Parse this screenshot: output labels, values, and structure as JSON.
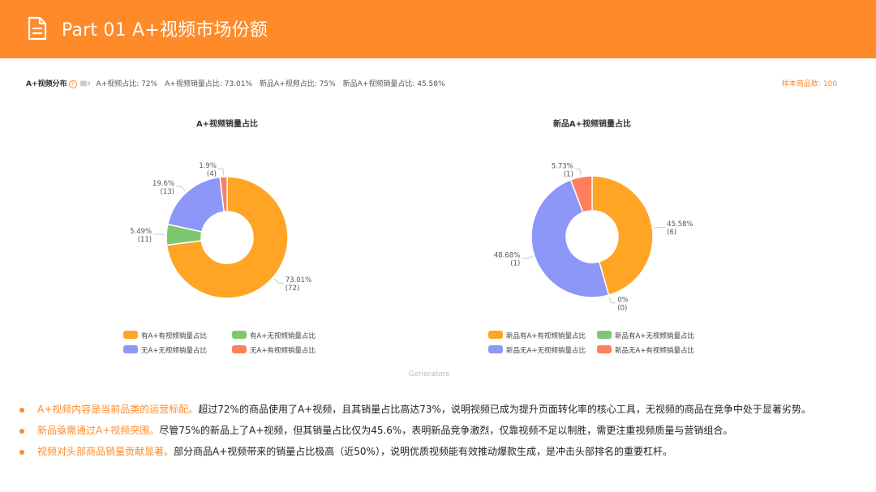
{
  "header": {
    "title": "Part 01  A+视频市场份额",
    "icon": "document-icon",
    "background": "#FF8A2A"
  },
  "stats": {
    "label": "A+视频分布",
    "help": "?",
    "items": [
      "A+视频占比: 72%",
      "A+视频销量占比: 73.01%",
      "新品A+视频占比: 75%",
      "新品A+视频销量占比: 45.58%"
    ],
    "sample": "样本商品数: 100"
  },
  "chart_data": [
    {
      "type": "pie",
      "donut": true,
      "title": "A+视频销量占比",
      "slices": [
        {
          "name": "有A+有视频销量占比",
          "value": 73.01,
          "count": 72,
          "color": "#FFA424"
        },
        {
          "name": "有A+无视频销量占比",
          "value": 5.49,
          "count": 11,
          "color": "#7DC86E"
        },
        {
          "name": "无A+无视频销量占比",
          "value": 19.6,
          "count": 13,
          "color": "#8C97F7"
        },
        {
          "name": "无A+有视频销量占比",
          "value": 1.9,
          "count": 4,
          "color": "#FF7F5C"
        }
      ],
      "labels": [
        {
          "pct": "73.01%",
          "cnt": "(72)"
        },
        {
          "pct": "5.49%",
          "cnt": "(11)"
        },
        {
          "pct": "19.6%",
          "cnt": "(13)"
        },
        {
          "pct": "1.9%",
          "cnt": "(4)"
        }
      ],
      "legend": [
        "有A+有视频销量占比",
        "有A+无视频销量占比",
        "无A+无视频销量占比",
        "无A+有视频销量占比"
      ]
    },
    {
      "type": "pie",
      "donut": true,
      "title": "新品A+视频销量占比",
      "slices": [
        {
          "name": "新品有A+有视频销量占比",
          "value": 45.58,
          "count": 6,
          "color": "#FFA424"
        },
        {
          "name": "新品有A+无视频销量占比",
          "value": 0,
          "count": 0,
          "color": "#7DC86E"
        },
        {
          "name": "新品无A+无视频销量占比",
          "value": 48.68,
          "count": 1,
          "color": "#8C97F7"
        },
        {
          "name": "新品无A+有视频销量占比",
          "value": 5.73,
          "count": 1,
          "color": "#FF7F5C"
        }
      ],
      "labels": [
        {
          "pct": "45.58%",
          "cnt": "(6)"
        },
        {
          "pct": "0%",
          "cnt": "(0)"
        },
        {
          "pct": "48.68%",
          "cnt": "(1)"
        },
        {
          "pct": "5.73%",
          "cnt": "(1)"
        }
      ],
      "legend": [
        "新品有A+有视频销量占比",
        "新品有A+无视频销量占比",
        "新品无A+无视频销量占比",
        "新品无A+有视频销量占比"
      ]
    }
  ],
  "watermark": "Generators",
  "bullets": [
    {
      "highlight": "A+视频内容是当前品类的运营标配。",
      "text": "超过72%的商品使用了A+视频，且其销量占比高达73%，说明视频已成为提升页面转化率的核心工具，无视频的商品在竞争中处于显著劣势。"
    },
    {
      "highlight": "新品亟需通过A+视频突围。",
      "text": "尽管75%的新品上了A+视频，但其销量占比仅为45.6%，表明新品竞争激烈，仅靠视频不足以制胜，需更注重视频质量与营销组合。"
    },
    {
      "highlight": "视频对头部商品销量贡献显著。",
      "text": "部分商品A+视频带来的销量占比极高（近50%），说明优质视频能有效推动爆款生成，是冲击头部排名的重要杠杆。"
    }
  ]
}
